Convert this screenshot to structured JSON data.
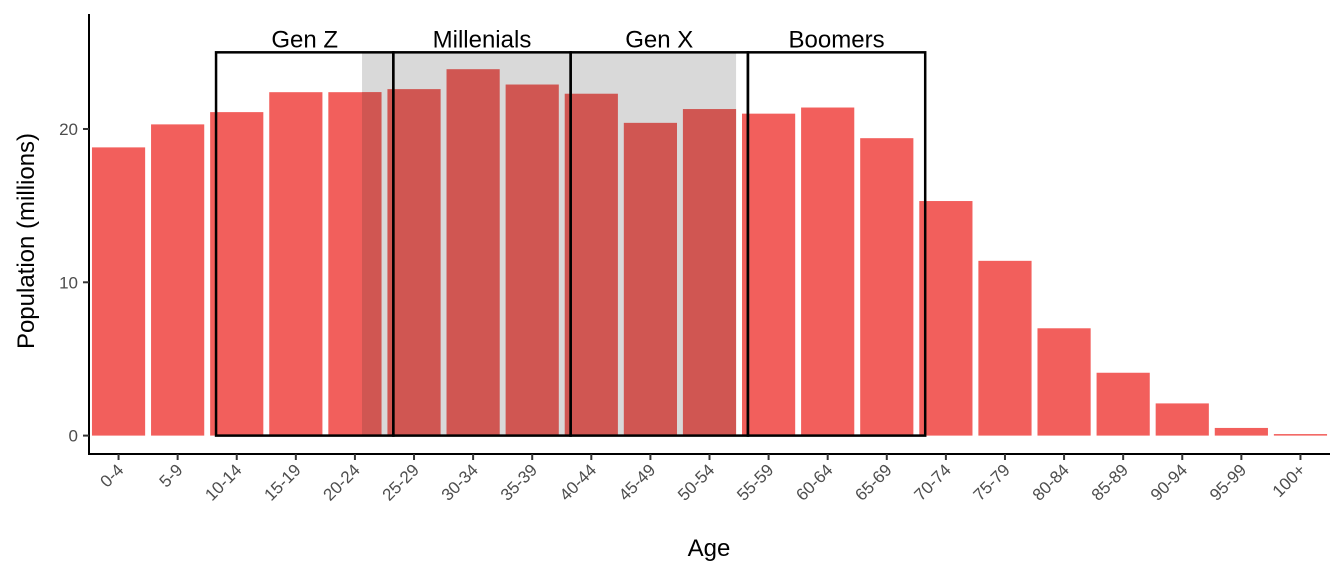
{
  "chart_data": {
    "type": "bar",
    "xlabel": "Age",
    "ylabel": "Population (millions)",
    "categories": [
      "0-4",
      "5-9",
      "10-14",
      "15-19",
      "20-24",
      "25-29",
      "30-34",
      "35-39",
      "40-44",
      "45-49",
      "50-54",
      "55-59",
      "60-64",
      "65-69",
      "70-74",
      "75-79",
      "80-84",
      "85-89",
      "90-94",
      "95-99",
      "100+"
    ],
    "values": [
      18.8,
      20.3,
      21.1,
      22.4,
      22.4,
      22.6,
      23.9,
      22.9,
      22.3,
      20.4,
      21.3,
      21.0,
      21.4,
      19.4,
      15.3,
      11.4,
      7.0,
      4.1,
      2.1,
      0.5,
      0.1
    ],
    "yticks": [
      0,
      10,
      20
    ],
    "ylim": [
      -1.2,
      27.5
    ],
    "grid": false,
    "legend": "none",
    "shaded_band": {
      "from": "25-29",
      "to": "50-54",
      "color": "#d9d9d9"
    },
    "generations": [
      {
        "label": "Gen Z",
        "from": "10-14",
        "to": "20-24"
      },
      {
        "label": "Millenials",
        "from": "25-29",
        "to": "35-39"
      },
      {
        "label": "Gen X",
        "from": "40-44",
        "to": "50-54"
      },
      {
        "label": "Boomers",
        "from": "55-59",
        "to": "65-69"
      }
    ],
    "colors": {
      "bar": "#f25f5c",
      "bar_in_band": "#d05652",
      "band": "#d9d9d9",
      "box": "#000000"
    }
  }
}
